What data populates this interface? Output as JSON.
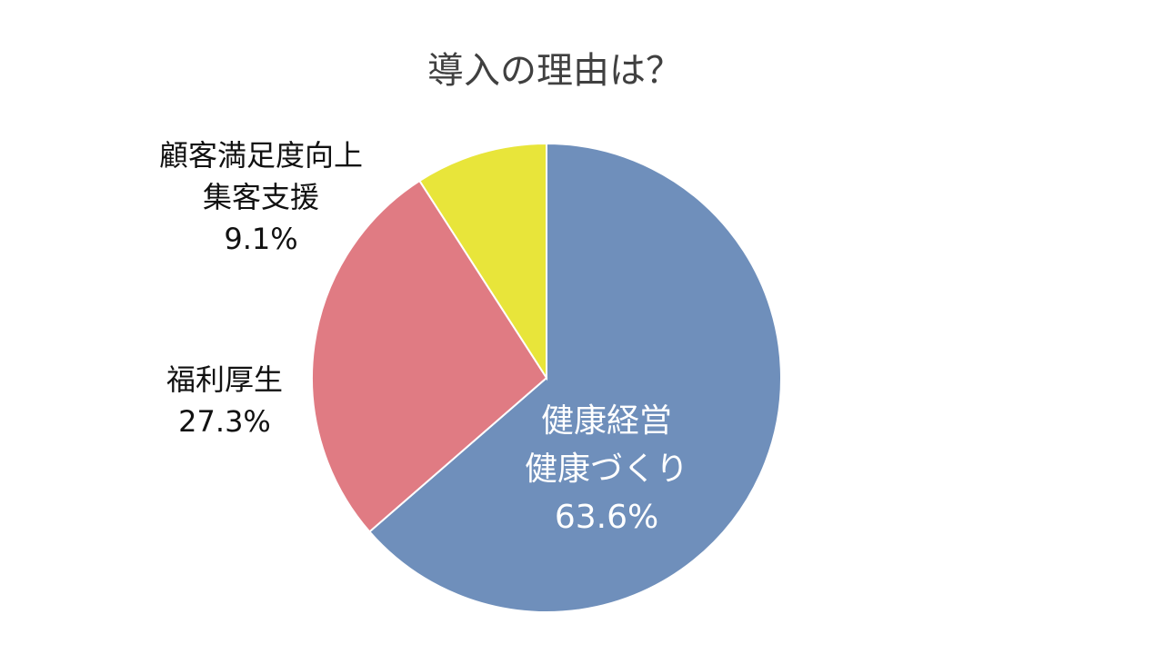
{
  "chart_data": {
    "type": "pie",
    "title": "導入の理由は？",
    "categories": [
      [
        "健康経営",
        "健康づくり"
      ],
      [
        "福利厚生"
      ],
      [
        "顧客満足度向上",
        "集客支援"
      ]
    ],
    "values": [
      63.6,
      27.3,
      9.1
    ],
    "value_labels": [
      "63.6%",
      "27.3%",
      "9.1%"
    ],
    "colors": [
      "#6f8fbb",
      "#e07b83",
      "#e8e53a"
    ]
  }
}
